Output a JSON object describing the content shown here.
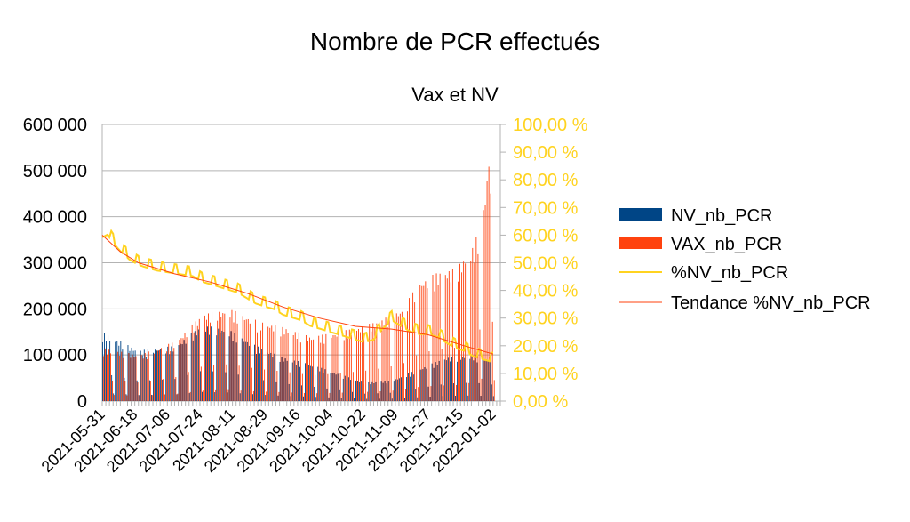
{
  "chart_data": {
    "type": "bar",
    "title": "Nombre de PCR effectués",
    "subtitle": "Vax et NV",
    "y_left": {
      "range": [
        0,
        600000
      ],
      "ticks": [
        "0",
        "100 000",
        "200 000",
        "300 000",
        "400 000",
        "500 000",
        "600 000"
      ]
    },
    "y_right": {
      "range": [
        0,
        100
      ],
      "ticks": [
        "0,00 %",
        "10,00 %",
        "20,00 %",
        "30,00 %",
        "40,00 %",
        "50,00 %",
        "60,00 %",
        "70,00 %",
        "80,00 %",
        "90,00 %",
        "100,00 %"
      ]
    },
    "x_tick_labels": [
      "2021-05-31",
      "2021-06-18",
      "2021-07-06",
      "2021-07-24",
      "2021-08-11",
      "2021-08-29",
      "2021-09-16",
      "2021-10-04",
      "2021-10-22",
      "2021-11-09",
      "2021-11-27",
      "2021-12-15",
      "2022-01-02"
    ],
    "x_range": [
      "2021-05-31",
      "2022-01-05"
    ],
    "grid": true,
    "legend_position": "right",
    "series": [
      {
        "name": "NV_nb_PCR",
        "kind": "bar",
        "axis": "left",
        "color": "#004586",
        "approx_weekday_level": [
          [
            0,
            150000
          ],
          [
            20,
            110000
          ],
          [
            40,
            120000
          ],
          [
            55,
            165000
          ],
          [
            70,
            155000
          ],
          [
            85,
            120000
          ],
          [
            100,
            95000
          ],
          [
            115,
            80000
          ],
          [
            130,
            60000
          ],
          [
            145,
            40000
          ],
          [
            160,
            45000
          ],
          [
            175,
            70000
          ],
          [
            190,
            95000
          ],
          [
            205,
            100000
          ],
          [
            215,
            90000
          ]
        ]
      },
      {
        "name": "VAX_nb_PCR",
        "kind": "bar",
        "axis": "left",
        "color": "#ff420e",
        "approx_weekday_level": [
          [
            0,
            115000
          ],
          [
            20,
            100000
          ],
          [
            40,
            130000
          ],
          [
            55,
            190000
          ],
          [
            70,
            200000
          ],
          [
            85,
            175000
          ],
          [
            100,
            160000
          ],
          [
            115,
            140000
          ],
          [
            130,
            150000
          ],
          [
            145,
            165000
          ],
          [
            155,
            180000
          ],
          [
            165,
            200000
          ],
          [
            175,
            260000
          ],
          [
            185,
            280000
          ],
          [
            195,
            290000
          ],
          [
            205,
            340000
          ],
          [
            210,
            420000
          ],
          [
            213,
            530000
          ],
          [
            216,
            380000
          ]
        ]
      },
      {
        "name": "%NV_nb_PCR",
        "kind": "line",
        "axis": "right",
        "color": "#ffd320",
        "approx_points": [
          [
            0,
            60
          ],
          [
            3,
            61
          ],
          [
            6,
            58
          ],
          [
            10,
            55
          ],
          [
            15,
            52
          ],
          [
            20,
            50
          ],
          [
            25,
            49
          ],
          [
            30,
            48
          ],
          [
            35,
            47.5
          ],
          [
            40,
            47
          ],
          [
            45,
            46.5
          ],
          [
            50,
            46
          ],
          [
            55,
            44
          ],
          [
            60,
            43
          ],
          [
            65,
            42
          ],
          [
            70,
            41
          ],
          [
            75,
            40
          ],
          [
            80,
            38
          ],
          [
            85,
            36
          ],
          [
            90,
            35
          ],
          [
            95,
            34
          ],
          [
            100,
            32
          ],
          [
            105,
            31
          ],
          [
            110,
            30
          ],
          [
            115,
            28
          ],
          [
            120,
            27
          ],
          [
            125,
            26
          ],
          [
            130,
            25
          ],
          [
            135,
            24
          ],
          [
            140,
            23
          ],
          [
            145,
            22
          ],
          [
            150,
            23
          ],
          [
            155,
            27
          ],
          [
            160,
            30
          ],
          [
            165,
            28
          ],
          [
            170,
            26
          ],
          [
            175,
            25
          ],
          [
            180,
            25
          ],
          [
            185,
            24
          ],
          [
            190,
            22
          ],
          [
            195,
            20
          ],
          [
            200,
            19
          ],
          [
            205,
            17
          ],
          [
            210,
            16
          ],
          [
            215,
            15
          ]
        ]
      },
      {
        "name": "Tendance %NV_nb_PCR",
        "kind": "trendline",
        "axis": "right",
        "color": "#ff420e",
        "approx_points": [
          [
            0,
            60
          ],
          [
            10,
            54
          ],
          [
            20,
            50
          ],
          [
            40,
            46
          ],
          [
            60,
            43
          ],
          [
            80,
            39
          ],
          [
            100,
            34
          ],
          [
            120,
            30
          ],
          [
            140,
            27
          ],
          [
            160,
            26
          ],
          [
            180,
            24
          ],
          [
            200,
            20
          ],
          [
            216,
            17
          ]
        ]
      }
    ]
  },
  "legend": {
    "items": [
      {
        "label": "NV_nb_PCR",
        "color": "#004586",
        "kind": "bar"
      },
      {
        "label": "VAX_nb_PCR",
        "color": "#ff420e",
        "kind": "bar"
      },
      {
        "label": "%NV_nb_PCR",
        "color": "#ffd320",
        "kind": "line"
      },
      {
        "label": "Tendance %NV_nb_PCR",
        "color": "#ff420e",
        "kind": "thinline"
      }
    ]
  },
  "colors": {
    "right_axis_text": "#ffd320",
    "grid": "#b3b3b3"
  }
}
